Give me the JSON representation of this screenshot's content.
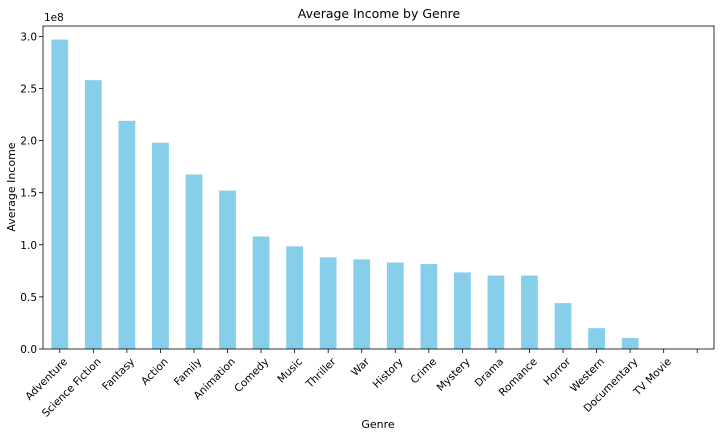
{
  "chart_data": {
    "type": "bar",
    "title": "Average Income by Genre",
    "xlabel": "Genre",
    "ylabel": "Average Income",
    "offset_label": "1e8",
    "categories": [
      "Adventure",
      "Science Fiction",
      "Fantasy",
      "Action",
      "Family",
      "Animation",
      "Comedy",
      "Music",
      "Thriller",
      "War",
      "History",
      "Crime",
      "Mystery",
      "Drama",
      "Romance",
      "Horror",
      "Western",
      "Documentary",
      "TV Movie",
      ""
    ],
    "values": [
      297000000,
      258000000,
      219000000,
      198000000,
      167500000,
      152000000,
      108000000,
      98500000,
      88000000,
      86000000,
      83000000,
      81500000,
      73500000,
      70500000,
      70500000,
      44000000,
      20000000,
      10500000,
      0,
      0
    ],
    "ylim": [
      0,
      310000000
    ],
    "yticks": [
      0,
      0.5,
      1.0,
      1.5,
      2.0,
      2.5,
      3.0
    ],
    "ytick_labels": [
      "0.0",
      "0.5",
      "1.0",
      "1.5",
      "2.0",
      "2.5",
      "3.0"
    ],
    "bar_color": "#87ceeb",
    "grid": false,
    "legend": "none"
  }
}
